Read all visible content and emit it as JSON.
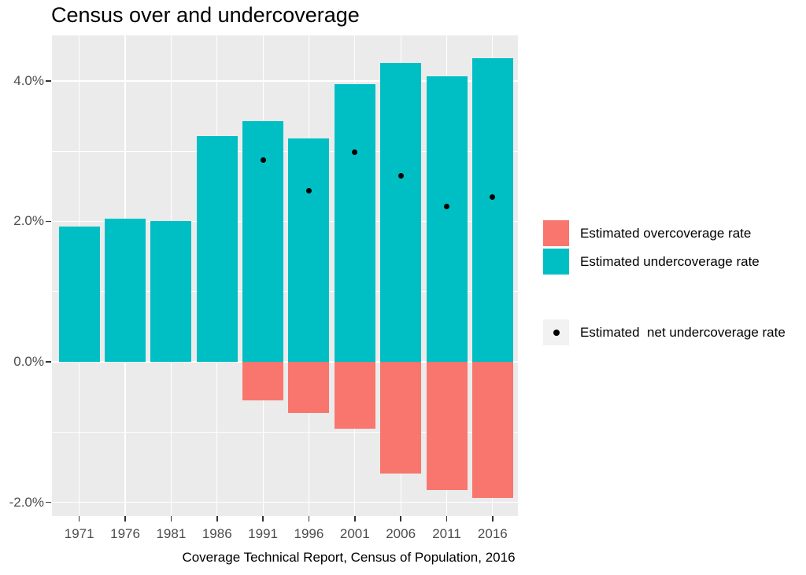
{
  "title": "Census over and undercoverage",
  "axis": {
    "x_title": "Coverage Technical Report, Census of Population, 2016",
    "y_tick_labels": [
      "4.0%",
      "2.0%",
      "0.0%",
      "-2.0%"
    ],
    "x_tick_labels": [
      "1971",
      "1976",
      "1981",
      "1986",
      "1991",
      "1996",
      "2001",
      "2006",
      "2011",
      "2016"
    ]
  },
  "legend": {
    "overcoverage": {
      "label": "Estimated overcoverage rate",
      "color": "#F8766D"
    },
    "undercoverage": {
      "label": "Estimated undercoverage rate",
      "color": "#00BFC4"
    },
    "net": {
      "label": "Estimated  net undercoverage rate",
      "color": "#000000"
    }
  },
  "colors": {
    "panel_background": "#EBEBEB",
    "gridline": "#FFFFFF",
    "axis_text": "#4D4D4D",
    "tick_mark": "#333333",
    "legend_key_background": "#F2F2F2"
  },
  "chart_data": {
    "type": "bar",
    "categories": [
      "1971",
      "1976",
      "1981",
      "1986",
      "1991",
      "1996",
      "2001",
      "2006",
      "2011",
      "2016"
    ],
    "series": [
      {
        "name": "Estimated undercoverage rate",
        "type": "bar",
        "color": "#00BFC4",
        "values": [
          1.93,
          2.04,
          2.01,
          3.21,
          3.43,
          3.18,
          3.95,
          4.25,
          4.07,
          4.32
        ]
      },
      {
        "name": "Estimated overcoverage rate",
        "type": "bar",
        "color": "#F8766D",
        "values": [
          null,
          null,
          null,
          null,
          -0.55,
          -0.73,
          -0.95,
          -1.59,
          -1.83,
          -1.94
        ]
      },
      {
        "name": "Estimated  net undercoverage rate",
        "type": "point",
        "color": "#000000",
        "values": [
          null,
          null,
          null,
          null,
          2.87,
          2.44,
          2.98,
          2.65,
          2.21,
          2.35
        ]
      }
    ],
    "title": "Census over and undercoverage",
    "xlabel": "Coverage Technical Report, Census of Population, 2016",
    "ylabel": "",
    "ylim": [
      -2.19,
      4.65
    ],
    "y_major_gridlines": [
      4,
      2,
      0,
      -2
    ],
    "y_minor_gridlines": [
      3,
      1,
      -1
    ],
    "y_tick_format": "percent",
    "grid": true,
    "legend_position": "right"
  }
}
